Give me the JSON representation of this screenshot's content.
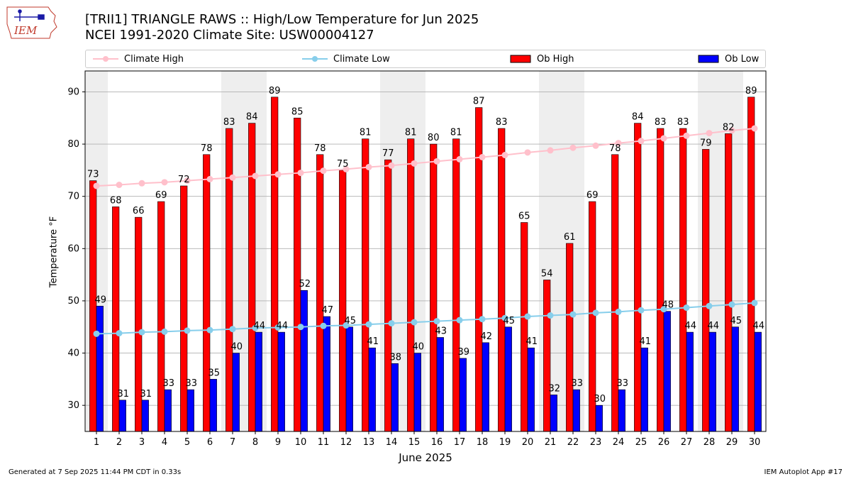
{
  "header": {
    "title_line1": "[TRII1] TRIANGLE RAWS :: High/Low Temperature for Jun 2025",
    "title_line2": "NCEI 1991-2020 Climate Site: USW00004127",
    "logo_text": "IEM"
  },
  "legend": {
    "items": [
      {
        "label": "Climate High",
        "color": "#ffc0cb",
        "kind": "line"
      },
      {
        "label": "Climate Low",
        "color": "#87ceeb",
        "kind": "line"
      },
      {
        "label": "Ob High",
        "color": "#ff0000",
        "kind": "bar"
      },
      {
        "label": "Ob Low",
        "color": "#0000ff",
        "kind": "bar"
      }
    ]
  },
  "footer": {
    "left": "Generated at 7 Sep 2025 11:44 PM CDT in 0.33s",
    "right": "IEM Autoplot App #17"
  },
  "chart_data": {
    "type": "bar",
    "title": "[TRII1] TRIANGLE RAWS :: High/Low Temperature for Jun 2025",
    "subtitle": "NCEI 1991-2020 Climate Site: USW00004127",
    "xlabel": "June 2025",
    "ylabel": "Temperature °F",
    "ylim": [
      25,
      94
    ],
    "yticks": [
      30,
      40,
      50,
      60,
      70,
      80,
      90
    ],
    "grid": true,
    "legend_position": "top",
    "categories": [
      "1",
      "2",
      "3",
      "4",
      "5",
      "6",
      "7",
      "8",
      "9",
      "10",
      "11",
      "12",
      "13",
      "14",
      "15",
      "16",
      "17",
      "18",
      "19",
      "20",
      "21",
      "22",
      "23",
      "24",
      "25",
      "26",
      "27",
      "28",
      "29",
      "30"
    ],
    "weekend_shaded_days": [
      1,
      7,
      8,
      14,
      15,
      21,
      22,
      28,
      29
    ],
    "series": [
      {
        "name": "Ob High",
        "kind": "bar",
        "color": "#ff0000",
        "values": [
          73,
          68,
          66,
          69,
          72,
          78,
          83,
          84,
          89,
          85,
          78,
          75,
          81,
          77,
          81,
          80,
          81,
          87,
          83,
          65,
          54,
          61,
          69,
          78,
          84,
          83,
          83,
          79,
          82,
          89
        ]
      },
      {
        "name": "Ob Low",
        "kind": "bar",
        "color": "#0000ff",
        "values": [
          49,
          31,
          31,
          33,
          33,
          35,
          40,
          44,
          44,
          52,
          47,
          45,
          41,
          38,
          40,
          43,
          39,
          42,
          45,
          41,
          32,
          33,
          30,
          33,
          41,
          48,
          44,
          44,
          45,
          44
        ]
      },
      {
        "name": "Climate High",
        "kind": "line",
        "color": "#ffc0cb",
        "values": [
          72.0,
          72.2,
          72.5,
          72.7,
          73.0,
          73.3,
          73.6,
          73.9,
          74.2,
          74.5,
          74.9,
          75.2,
          75.6,
          75.9,
          76.3,
          76.7,
          77.1,
          77.5,
          77.9,
          78.4,
          78.8,
          79.3,
          79.7,
          80.2,
          80.6,
          81.1,
          81.6,
          82.1,
          82.6,
          83.0
        ]
      },
      {
        "name": "Climate Low",
        "kind": "line",
        "color": "#87ceeb",
        "values": [
          43.7,
          43.8,
          44.0,
          44.1,
          44.3,
          44.4,
          44.6,
          44.8,
          44.9,
          45.0,
          45.2,
          45.3,
          45.5,
          45.7,
          45.9,
          46.1,
          46.3,
          46.5,
          46.7,
          47.0,
          47.2,
          47.4,
          47.7,
          47.9,
          48.2,
          48.4,
          48.7,
          49.0,
          49.3,
          49.6
        ]
      }
    ]
  }
}
